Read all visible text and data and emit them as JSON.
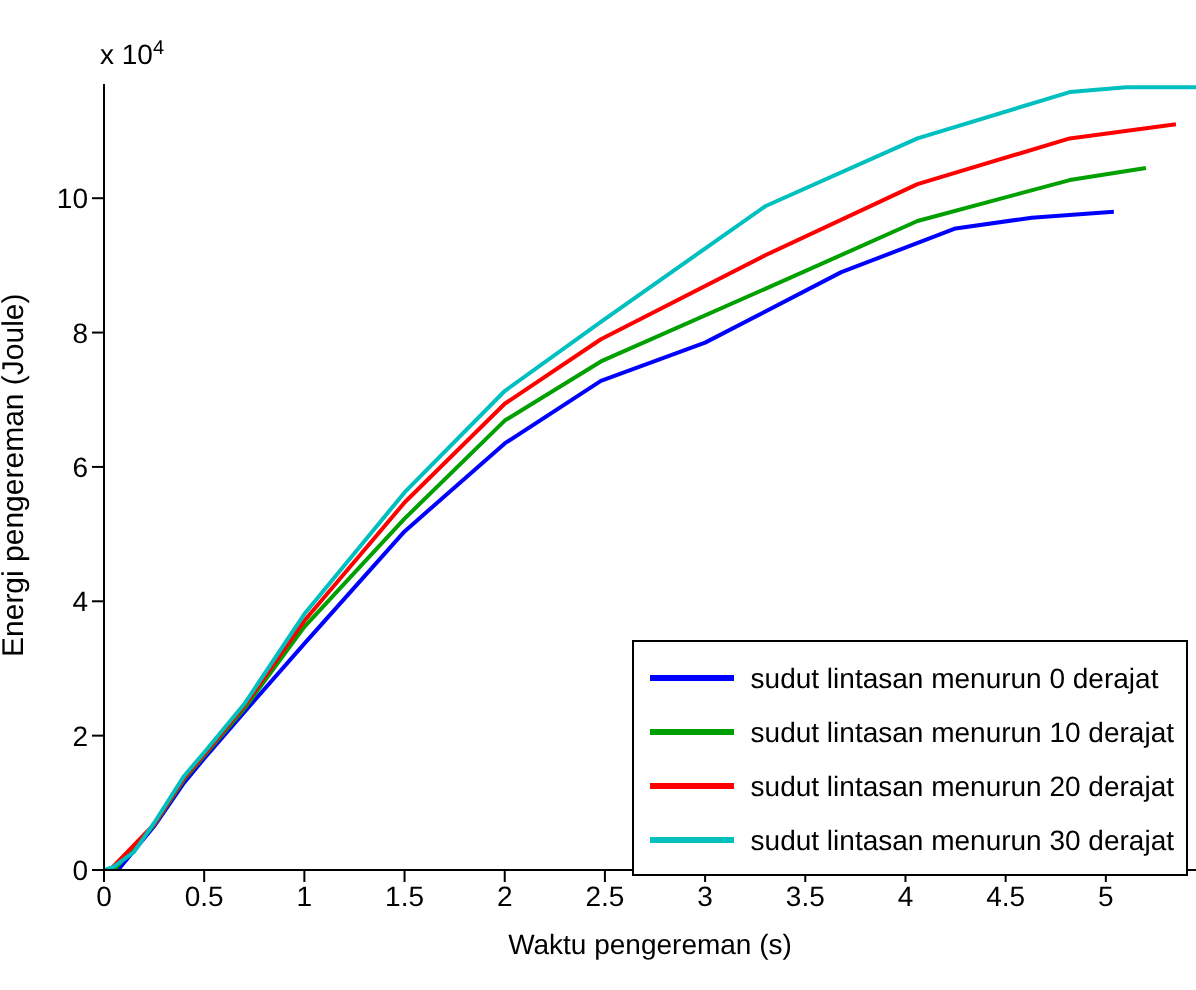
{
  "chart_data": {
    "type": "line",
    "xlabel": "Waktu pengereman (s)",
    "ylabel": "Energi pengereman (Joule)",
    "annotations": [
      "x 10$^{4}$"
    ],
    "xlim": [
      0,
      5.45
    ],
    "xticks": [
      0,
      0.5,
      1,
      1.5,
      2,
      2.5,
      3,
      3.5,
      4,
      4.5,
      5
    ],
    "ylim": [
      0,
      11.7
    ],
    "yticks": [
      0,
      2,
      4,
      6,
      8,
      10
    ],
    "grid": false,
    "legend": "bottom right",
    "line_style": "solid",
    "marker": "none",
    "series": [
      {
        "name": "sudut lintasan menurun 0 derajat",
        "color": "#0000ff",
        "x": [
          0.07,
          0.25,
          0.4,
          0.5,
          0.7,
          1,
          1.5,
          2,
          2.48,
          3,
          3.68,
          4.25,
          4.63,
          5.04
        ],
        "values": [
          0,
          0.65,
          1.3,
          1.66,
          2.35,
          3.37,
          5.04,
          6.35,
          7.28,
          7.85,
          8.9,
          9.55,
          9.71,
          9.8
        ]
      },
      {
        "name": "sudut lintasan menurun 10 derajat",
        "color": "#00a000",
        "x": [
          0.05,
          0.25,
          0.4,
          0.5,
          0.7,
          1,
          1.5,
          2,
          2.48,
          3.3,
          4.06,
          4.82,
          5.2
        ],
        "values": [
          0,
          0.67,
          1.35,
          1.7,
          2.4,
          3.62,
          5.23,
          6.69,
          7.57,
          8.65,
          9.66,
          10.27,
          10.45
        ]
      },
      {
        "name": "sudut lintasan menurun 20 derajat",
        "color": "#ff0000",
        "x": [
          0.03,
          0.25,
          0.4,
          0.5,
          0.7,
          1,
          1.5,
          2,
          2.48,
          3.3,
          4.06,
          4.82,
          5.35
        ],
        "values": [
          0,
          0.68,
          1.37,
          1.72,
          2.44,
          3.71,
          5.47,
          6.94,
          7.9,
          9.15,
          10.21,
          10.89,
          11.1
        ]
      },
      {
        "name": "sudut lintasan menurun 30 derajat",
        "color": "#00bfbf",
        "x": [
          0,
          0.05,
          0.15,
          0.25,
          0.4,
          0.5,
          0.7,
          1,
          1.5,
          2,
          2.48,
          3.3,
          4.06,
          4.82,
          5.1,
          5.45
        ],
        "values": [
          0,
          0.05,
          0.27,
          0.7,
          1.4,
          1.75,
          2.47,
          3.81,
          5.62,
          7.13,
          8.16,
          9.88,
          10.89,
          11.58,
          11.65,
          11.65
        ]
      }
    ]
  }
}
